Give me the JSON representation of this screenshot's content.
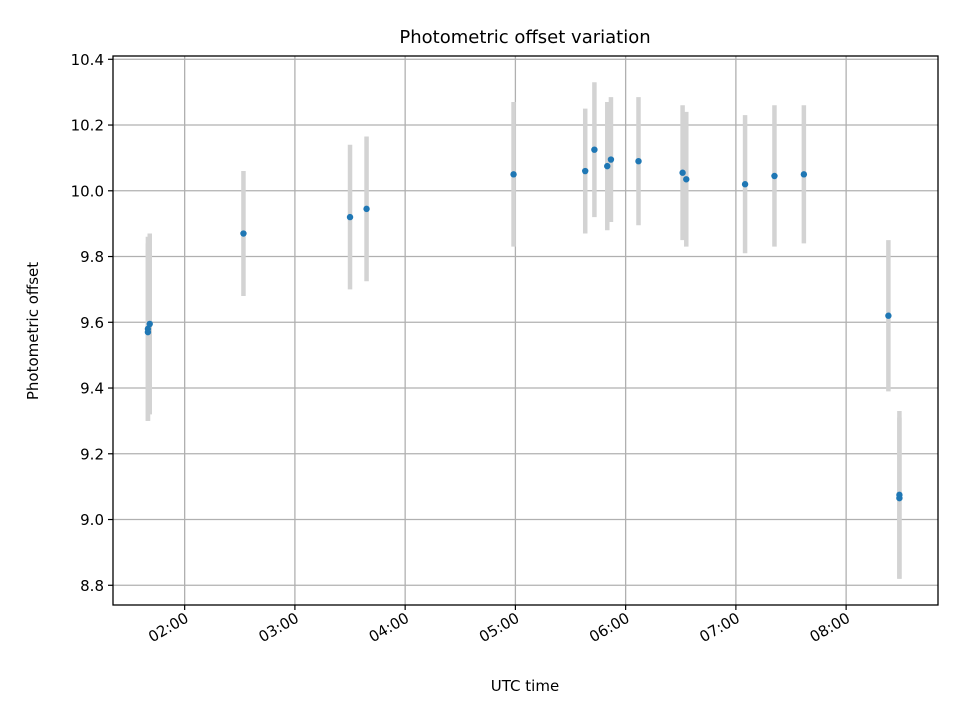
{
  "chart_data": {
    "type": "scatter",
    "title": "Photometric offset variation",
    "xlabel": "UTC time",
    "ylabel": "Photometric offset",
    "x_type": "time",
    "xlim": [
      "01:21",
      "08:50"
    ],
    "ylim": [
      8.74,
      10.41
    ],
    "x_ticks": [
      "02:00",
      "03:00",
      "04:00",
      "05:00",
      "06:00",
      "07:00",
      "08:00"
    ],
    "y_ticks": [
      8.8,
      9.0,
      9.2,
      9.4,
      9.6,
      9.8,
      10.0,
      10.2,
      10.4
    ],
    "y_tick_labels": [
      "8.8",
      "9.0",
      "9.2",
      "9.4",
      "9.6",
      "9.8",
      "10.0",
      "10.2",
      "10.4"
    ],
    "grid": true,
    "point_color": "#1f77b4",
    "errorbar_color": "#d3d3d3",
    "points": [
      {
        "x": "01:40",
        "y": 9.58,
        "yerr": 0.28
      },
      {
        "x": "01:40",
        "y": 9.57,
        "yerr": 0.27
      },
      {
        "x": "01:41",
        "y": 9.595,
        "yerr": 0.275
      },
      {
        "x": "02:32",
        "y": 9.87,
        "yerr": 0.19
      },
      {
        "x": "03:30",
        "y": 9.92,
        "yerr": 0.22
      },
      {
        "x": "03:39",
        "y": 9.945,
        "yerr": 0.22
      },
      {
        "x": "04:59",
        "y": 10.05,
        "yerr": 0.22
      },
      {
        "x": "05:38",
        "y": 10.06,
        "yerr": 0.19
      },
      {
        "x": "05:43",
        "y": 10.125,
        "yerr": 0.205
      },
      {
        "x": "05:50",
        "y": 10.075,
        "yerr": 0.195
      },
      {
        "x": "05:52",
        "y": 10.095,
        "yerr": 0.19
      },
      {
        "x": "06:07",
        "y": 10.09,
        "yerr": 0.195
      },
      {
        "x": "06:31",
        "y": 10.055,
        "yerr": 0.205
      },
      {
        "x": "06:33",
        "y": 10.035,
        "yerr": 0.205
      },
      {
        "x": "07:05",
        "y": 10.02,
        "yerr": 0.21
      },
      {
        "x": "07:21",
        "y": 10.045,
        "yerr": 0.215
      },
      {
        "x": "07:37",
        "y": 10.05,
        "yerr": 0.21
      },
      {
        "x": "08:23",
        "y": 9.62,
        "yerr": 0.23
      },
      {
        "x": "08:29",
        "y": 9.075,
        "yerr": 0.255
      },
      {
        "x": "08:29",
        "y": 9.065,
        "yerr": 0.245
      }
    ]
  }
}
